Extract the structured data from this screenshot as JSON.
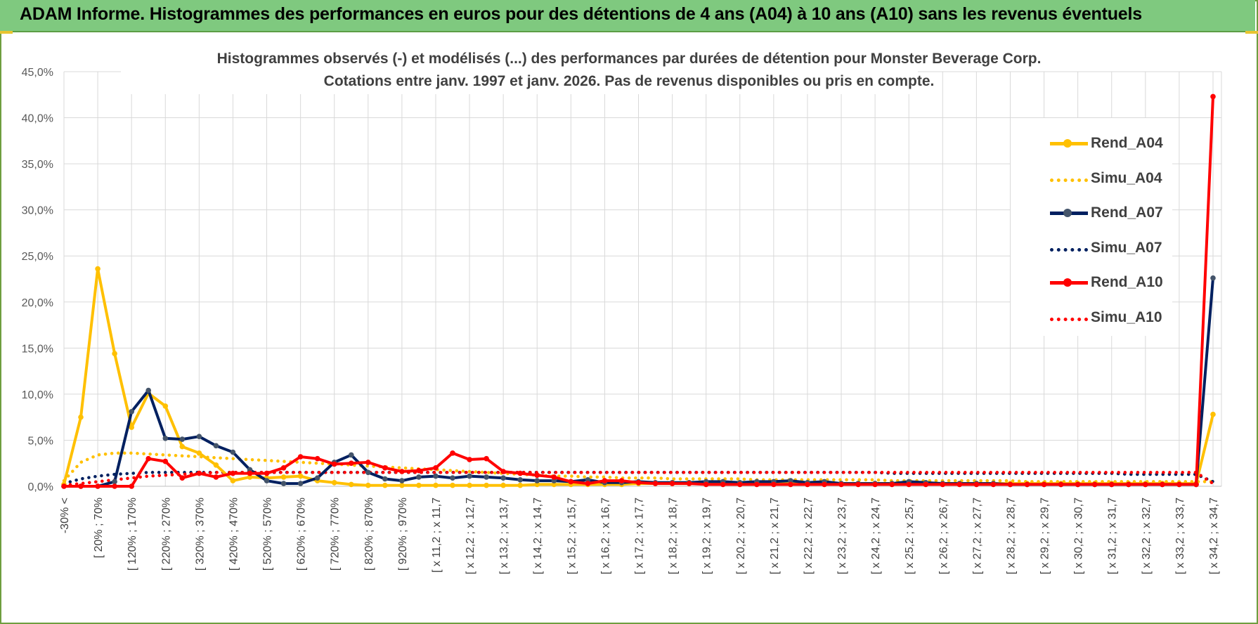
{
  "header": {
    "title": "ADAM Informe. Histogrammes des performances en euros pour des détentions de 4 ans (A04) à 10 ans (A10) sans les revenus éventuels"
  },
  "chart_data": {
    "type": "line",
    "title": "Histogrammes observés (-) et modélisés (...) des performances par durées de détention pour Monster Beverage Corp.",
    "subtitle": "Cotations entre janv. 1997 et janv. 2026. Pas de revenus disponibles ou pris en compte.",
    "y_ticks": [
      "0,0%",
      "5,0%",
      "10,0%",
      "15,0%",
      "20,0%",
      "25,0%",
      "30,0%",
      "35,0%",
      "40,0%",
      "45,0%"
    ],
    "ylim": [
      0,
      45
    ],
    "grid": true,
    "legend_position": "right",
    "x_labels": [
      "-30% <",
      "[ 20% ; 70%",
      "[ 120% ; 170%",
      "[ 220% ; 270%",
      "[ 320% ; 370%",
      "[ 420% ; 470%",
      "[ 520% ; 570%",
      "[ 620% ; 670%",
      "[ 720% ; 770%",
      "[ 820% ; 870%",
      "[ 920% ; 970%",
      "[ x 11,2 ; x 11,7",
      "[ x 12,2 ; x 12,7",
      "[ x 13,2 ; x 13,7",
      "[ x 14,2 ; x 14,7",
      "[ x 15,2 ; x 15,7",
      "[ x 16,2 ; x 16,7",
      "[ x 17,2 ; x 17,7",
      "[ x 18,2 ; x 18,7",
      "[ x 19,2 ; x 19,7",
      "[ x 20,2 ; x 20,7",
      "[ x 21,2 ; x 21,7",
      "[ x 22,2 ; x 22,7",
      "[ x 23,2 ; x 23,7",
      "[ x 24,2 ; x 24,7",
      "[ x 25,2 ; x 25,7",
      "[ x 26,2 ; x 26,7",
      "[ x 27,2 ; x 27,7",
      "[ x 28,2 ; x 28,7",
      "[ x 29,2 ; x 29,7",
      "[ x 30,2 ; x 30,7",
      "[ x 31,2 ; x 31,7",
      "[ x 32,2 ; x 32,7",
      "[ x 33,2 ; x 33,7",
      "[ x 34,2 ; x 34,7"
    ],
    "n_points": 69,
    "series": [
      {
        "name": "Rend_A04",
        "style": "solid",
        "color": "#ffc000",
        "values": [
          0.2,
          7.5,
          23.6,
          14.4,
          6.4,
          10.1,
          8.7,
          4.3,
          3.6,
          2.3,
          0.6,
          1.0,
          0.9,
          1.0,
          1.1,
          0.6,
          0.4,
          0.2,
          0.1,
          0.1,
          0.1,
          0.1,
          0.1,
          0.1,
          0.1,
          0.1,
          0.1,
          0.1,
          0.2,
          0.2,
          0.2,
          0.2,
          0.2,
          0.2,
          0.3,
          0.3,
          0.3,
          0.3,
          0.3,
          0.3,
          0.3,
          0.3,
          0.3,
          0.3,
          0.3,
          0.3,
          0.3,
          0.3,
          0.3,
          0.3,
          0.3,
          0.3,
          0.3,
          0.3,
          0.3,
          0.3,
          0.3,
          0.3,
          0.3,
          0.3,
          0.3,
          0.3,
          0.3,
          0.3,
          0.3,
          0.3,
          0.3,
          0.3,
          7.8
        ]
      },
      {
        "name": "Simu_A04",
        "style": "dotted",
        "color": "#ffc000",
        "values": [
          0.6,
          2.6,
          3.4,
          3.6,
          3.6,
          3.5,
          3.4,
          3.3,
          3.2,
          3.1,
          3.0,
          2.9,
          2.8,
          2.7,
          2.6,
          2.5,
          2.4,
          2.3,
          2.2,
          2.1,
          2.0,
          1.9,
          1.8,
          1.7,
          1.6,
          1.5,
          1.4,
          1.3,
          1.2,
          1.1,
          1.1,
          1.0,
          1.0,
          0.9,
          0.9,
          0.9,
          0.8,
          0.8,
          0.8,
          0.8,
          0.8,
          0.7,
          0.7,
          0.7,
          0.7,
          0.7,
          0.7,
          0.7,
          0.7,
          0.6,
          0.6,
          0.6,
          0.6,
          0.6,
          0.6,
          0.6,
          0.6,
          0.5,
          0.5,
          0.5,
          0.5,
          0.5,
          0.5,
          0.5,
          0.5,
          0.5,
          0.5,
          0.5,
          0.5
        ]
      },
      {
        "name": "Rend_A07",
        "style": "solid",
        "color": "#002060",
        "values": [
          0,
          0,
          0,
          0.5,
          8.1,
          10.4,
          5.2,
          5.1,
          5.4,
          4.4,
          3.7,
          1.8,
          0.6,
          0.3,
          0.3,
          0.9,
          2.6,
          3.4,
          1.5,
          0.8,
          0.6,
          1.0,
          1.1,
          0.9,
          1.1,
          1.0,
          0.9,
          0.7,
          0.6,
          0.6,
          0.5,
          0.7,
          0.4,
          0.4,
          0.5,
          0.4,
          0.4,
          0.4,
          0.5,
          0.5,
          0.4,
          0.5,
          0.5,
          0.6,
          0.4,
          0.5,
          0.3,
          0.3,
          0.3,
          0.3,
          0.5,
          0.4,
          0.3,
          0.3,
          0.3,
          0.3,
          0.2,
          0.2,
          0.2,
          0.2,
          0.2,
          0.2,
          0.2,
          0.2,
          0.2,
          0.2,
          0.2,
          0.2,
          22.6
        ]
      },
      {
        "name": "Simu_A07",
        "style": "dotted",
        "color": "#002060",
        "values": [
          0.3,
          0.8,
          1.1,
          1.3,
          1.4,
          1.5,
          1.5,
          1.5,
          1.5,
          1.5,
          1.5,
          1.5,
          1.5,
          1.5,
          1.5,
          1.5,
          1.5,
          1.5,
          1.5,
          1.5,
          1.5,
          1.5,
          1.5,
          1.5,
          1.5,
          1.5,
          1.5,
          1.5,
          1.5,
          1.5,
          1.5,
          1.5,
          1.5,
          1.5,
          1.5,
          1.5,
          1.5,
          1.5,
          1.5,
          1.5,
          1.5,
          1.5,
          1.5,
          1.5,
          1.5,
          1.5,
          1.5,
          1.5,
          1.5,
          1.4,
          1.4,
          1.4,
          1.4,
          1.4,
          1.4,
          1.4,
          1.4,
          1.4,
          1.4,
          1.4,
          1.4,
          1.4,
          1.4,
          1.3,
          1.3,
          1.3,
          1.3,
          1.3,
          0.5
        ]
      },
      {
        "name": "Rend_A10",
        "style": "solid",
        "color": "#ff0000",
        "values": [
          0,
          0,
          0,
          0,
          0,
          3.0,
          2.7,
          0.9,
          1.4,
          1.0,
          1.4,
          1.4,
          1.4,
          2.0,
          3.2,
          3.0,
          2.4,
          2.5,
          2.6,
          2.0,
          1.6,
          1.7,
          2.0,
          3.6,
          2.9,
          3.0,
          1.6,
          1.4,
          1.2,
          1.0,
          0.5,
          0.3,
          0.6,
          0.6,
          0.4,
          0.3,
          0.3,
          0.3,
          0.2,
          0.2,
          0.2,
          0.2,
          0.2,
          0.2,
          0.2,
          0.2,
          0.2,
          0.2,
          0.2,
          0.2,
          0.2,
          0.2,
          0.2,
          0.2,
          0.2,
          0.2,
          0.2,
          0.2,
          0.2,
          0.2,
          0.2,
          0.2,
          0.2,
          0.2,
          0.2,
          0.2,
          0.2,
          0.2,
          42.3
        ]
      },
      {
        "name": "Simu_A10",
        "style": "dotted",
        "color": "#ff0000",
        "values": [
          0.1,
          0.3,
          0.5,
          0.7,
          0.9,
          1.1,
          1.2,
          1.3,
          1.4,
          1.5,
          1.5,
          1.5,
          1.5,
          1.5,
          1.5,
          1.5,
          1.5,
          1.5,
          1.5,
          1.5,
          1.5,
          1.5,
          1.5,
          1.5,
          1.5,
          1.5,
          1.5,
          1.5,
          1.5,
          1.5,
          1.5,
          1.5,
          1.5,
          1.5,
          1.5,
          1.5,
          1.5,
          1.5,
          1.5,
          1.5,
          1.5,
          1.5,
          1.5,
          1.5,
          1.5,
          1.5,
          1.5,
          1.5,
          1.5,
          1.5,
          1.5,
          1.5,
          1.5,
          1.5,
          1.5,
          1.5,
          1.5,
          1.5,
          1.5,
          1.5,
          1.5,
          1.5,
          1.5,
          1.5,
          1.5,
          1.5,
          1.5,
          1.5,
          0.3
        ]
      }
    ]
  }
}
